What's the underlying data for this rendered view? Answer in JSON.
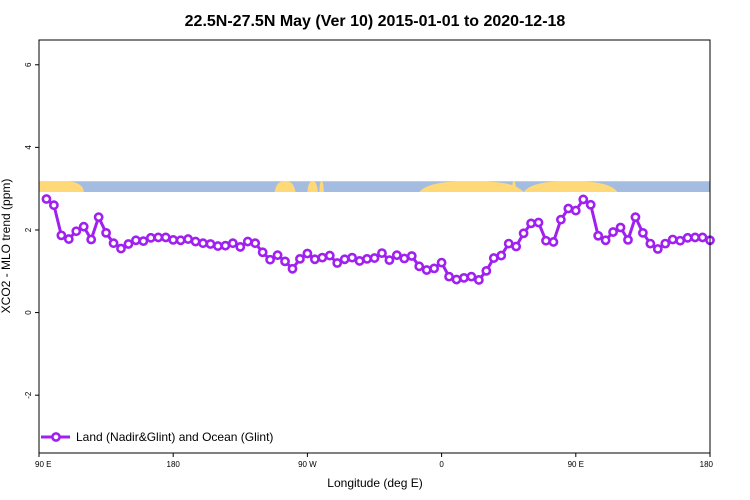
{
  "chart_data": {
    "type": "line",
    "title": "22.5N-27.5N May (Ver 10)   2015-01-01 to 2020-12-18",
    "xlabel": "Longitude (deg E)",
    "ylabel": "XCO2 - MLO trend (ppm)",
    "x_ticks": [
      {
        "x": 90,
        "label": "90 E"
      },
      {
        "x": 180,
        "label": "180"
      },
      {
        "x": 270,
        "label": "90 W"
      },
      {
        "x": 360,
        "label": "0"
      },
      {
        "x": 450,
        "label": "90 E"
      },
      {
        "x": 540,
        "label": "180"
      }
    ],
    "y_ticks": [
      {
        "y": -2,
        "label": "-2"
      },
      {
        "y": 0,
        "label": "0"
      },
      {
        "y": 2,
        "label": "2"
      },
      {
        "y": 4,
        "label": "4"
      },
      {
        "y": 6,
        "label": "6"
      }
    ],
    "xlim": [
      90,
      540
    ],
    "ylim": [
      -3.4,
      6.6
    ],
    "grid": false,
    "legend_position": "bottom-left",
    "colors": {
      "series": "#a020f0",
      "land": "#ffd977",
      "ocean": "#a4bcdf"
    },
    "land_ocean_strip": {
      "y_range": [
        2.92,
        3.18
      ],
      "land_spans": [
        [
          90,
          120
        ],
        [
          248,
          262
        ],
        [
          270,
          277
        ],
        [
          278,
          281
        ],
        [
          345,
          415
        ],
        [
          407,
          410
        ],
        [
          415,
          478
        ]
      ]
    },
    "series": [
      {
        "name": "Land (Nadir&Glint) and Ocean (Glint)",
        "x": [
          95,
          100,
          105,
          110,
          115,
          120,
          125,
          130,
          135,
          140,
          145,
          150,
          155,
          160,
          165,
          170,
          175,
          180,
          185,
          190,
          195,
          200,
          205,
          210,
          215,
          220,
          225,
          230,
          235,
          240,
          245,
          250,
          255,
          260,
          265,
          270,
          275,
          280,
          285,
          290,
          295,
          300,
          305,
          310,
          315,
          320,
          325,
          330,
          335,
          340,
          345,
          350,
          355,
          360,
          365,
          370,
          375,
          380,
          385,
          390,
          395,
          400,
          405,
          410,
          415,
          420,
          425,
          430,
          435,
          440,
          445,
          450,
          455,
          460,
          465,
          470,
          475,
          480,
          485,
          490,
          495,
          500,
          505,
          510,
          515,
          520,
          525,
          530,
          535,
          540
        ],
        "values": [
          2.75,
          2.6,
          1.87,
          1.78,
          1.97,
          2.08,
          1.77,
          2.31,
          1.93,
          1.68,
          1.55,
          1.66,
          1.75,
          1.73,
          1.81,
          1.82,
          1.82,
          1.76,
          1.75,
          1.78,
          1.72,
          1.68,
          1.66,
          1.61,
          1.62,
          1.68,
          1.59,
          1.72,
          1.68,
          1.46,
          1.28,
          1.39,
          1.24,
          1.06,
          1.3,
          1.43,
          1.29,
          1.33,
          1.38,
          1.2,
          1.29,
          1.33,
          1.25,
          1.3,
          1.32,
          1.44,
          1.27,
          1.39,
          1.31,
          1.37,
          1.12,
          1.03,
          1.07,
          1.21,
          0.87,
          0.8,
          0.84,
          0.87,
          0.79,
          1.01,
          1.32,
          1.38,
          1.67,
          1.6,
          1.92,
          2.16,
          2.18,
          1.74,
          1.71,
          2.25,
          2.52,
          2.47,
          2.74,
          2.61,
          1.86,
          1.75,
          1.95,
          2.06,
          1.76,
          2.31,
          1.93,
          1.67,
          1.54,
          1.67,
          1.77,
          1.74,
          1.81,
          1.82,
          1.82,
          1.75
        ]
      }
    ]
  }
}
